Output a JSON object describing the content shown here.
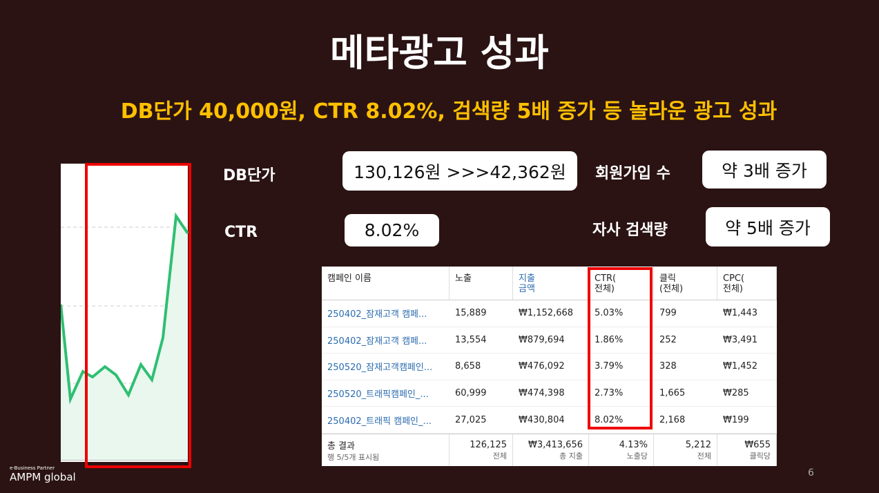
{
  "header": {
    "title": "메타광고 성과",
    "subtitle": "DB단가 40,000원, CTR 8.02%, 검색량 5배 증가 등 놀라운 광고 성과"
  },
  "metrics": [
    {
      "label": "DB단가",
      "value": "130,126원 >>>42,362원"
    },
    {
      "label": "CTR",
      "value": "8.02%"
    },
    {
      "label": "회원가입 수",
      "value": "약 3배 증가"
    },
    {
      "label": "자사 검색량",
      "value": "약 5배 증가"
    }
  ],
  "table": {
    "headers": [
      [
        "캠페인 이름"
      ],
      [
        "노출"
      ],
      [
        "지출",
        "금액"
      ],
      [
        "CTR(",
        "전체)"
      ],
      [
        "클릭",
        "(전체)"
      ],
      [
        "CPC(",
        "전체)"
      ]
    ],
    "rows": [
      [
        "250402_잠재고객 캠페...",
        "15,889",
        "₩1,152,668",
        "5.03%",
        "799",
        "₩1,443"
      ],
      [
        "250402_잠재고객 캠페...",
        "13,554",
        "₩879,694",
        "1.86%",
        "252",
        "₩3,491"
      ],
      [
        "250520_잠재고객캠페인...",
        "8,658",
        "₩476,092",
        "3.79%",
        "328",
        "₩1,452"
      ],
      [
        "250520_트래픽캠페인_...",
        "60,999",
        "₩474,398",
        "2.73%",
        "1,665",
        "₩285"
      ],
      [
        "250402_트래픽 캠페인_...",
        "27,025",
        "₩430,804",
        "8.02%",
        "2,168",
        "₩199"
      ]
    ],
    "totals": [
      [
        "총 결과",
        "행 5/5개 표시됨"
      ],
      [
        "126,125",
        "전체"
      ],
      [
        "₩3,413,656",
        "총 지출"
      ],
      [
        "4.13%",
        "노출당"
      ],
      [
        "5,212",
        "전체"
      ],
      [
        "₩655",
        "클릭당"
      ]
    ]
  },
  "footer": {
    "page": "6",
    "logo_tagline": "e-Business Partner",
    "logo": "AMPM global"
  }
}
